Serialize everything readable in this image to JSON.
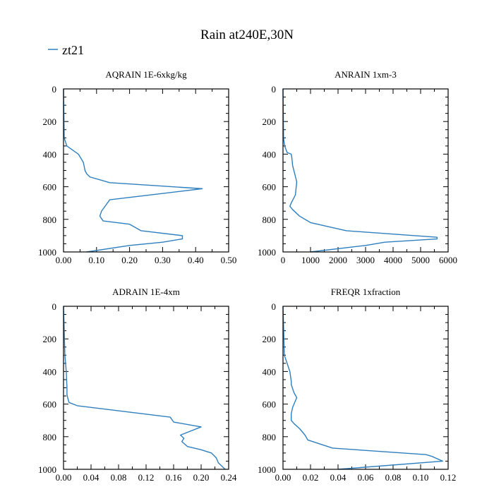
{
  "chart_title": "Rain at240E,30N",
  "legend": {
    "label": "zt21",
    "color": "#2f7fbf"
  },
  "chart_data": [
    {
      "type": "line",
      "title": "AQRAIN  1E-6xkg/kg",
      "xlim": [
        0,
        0.5
      ],
      "ylim": [
        1000,
        0
      ],
      "xticks": [
        0,
        0.1,
        0.2,
        0.3,
        0.4,
        0.5
      ],
      "xticklabels": [
        "0.00",
        "0.10",
        "0.20",
        "0.30",
        "0.40",
        "0.50"
      ],
      "yticks": [
        0,
        200,
        400,
        600,
        800,
        1000
      ],
      "yticklabels": [
        "0",
        "200",
        "400",
        "600",
        "800",
        "1000"
      ],
      "series": [
        {
          "name": "zt21",
          "x": [
            0,
            0.002,
            0.01,
            0.045,
            0.06,
            0.065,
            0.07,
            0.08,
            0.14,
            0.42,
            0.14,
            0.115,
            0.11,
            0.12,
            0.2,
            0.235,
            0.36,
            0.36,
            0.3,
            0.2,
            0.07
          ],
          "y": [
            0,
            300,
            350,
            400,
            450,
            500,
            520,
            540,
            575,
            612,
            680,
            750,
            780,
            810,
            830,
            870,
            900,
            920,
            940,
            960,
            1000
          ]
        }
      ]
    },
    {
      "type": "line",
      "title": "ANRAIN  1xm-3",
      "xlim": [
        0,
        6000
      ],
      "ylim": [
        1000,
        0
      ],
      "xticks": [
        0,
        1000,
        2000,
        3000,
        4000,
        5000,
        6000
      ],
      "xticklabels": [
        "0",
        "1000",
        "2000",
        "3000",
        "4000",
        "5000",
        "6000"
      ],
      "yticks": [
        0,
        200,
        400,
        600,
        800,
        1000
      ],
      "yticklabels": [
        "0",
        "200",
        "400",
        "600",
        "800",
        "1000"
      ],
      "series": [
        {
          "name": "zt21",
          "x": [
            0,
            20,
            60,
            150,
            300,
            320,
            350,
            500,
            450,
            300,
            250,
            350,
            600,
            900,
            1000,
            2300,
            5600,
            5600,
            3700,
            3000,
            1000
          ],
          "y": [
            0,
            300,
            350,
            390,
            400,
            420,
            470,
            570,
            650,
            700,
            720,
            740,
            780,
            810,
            820,
            870,
            910,
            920,
            940,
            960,
            1000
          ]
        }
      ]
    },
    {
      "type": "line",
      "title": "ADRAIN  1E-4xm",
      "xlim": [
        0,
        0.24
      ],
      "ylim": [
        1000,
        0
      ],
      "xticks": [
        0,
        0.04,
        0.08,
        0.12,
        0.16,
        0.2,
        0.24
      ],
      "xticklabels": [
        "0.00",
        "0.04",
        "0.08",
        "0.12",
        "0.16",
        "0.20",
        "0.24"
      ],
      "yticks": [
        0,
        200,
        400,
        600,
        800,
        1000
      ],
      "yticklabels": [
        "0",
        "200",
        "400",
        "600",
        "800",
        "1000"
      ],
      "series": [
        {
          "name": "zt21",
          "x": [
            0,
            0.002,
            0.004,
            0.005,
            0.005,
            0.006,
            0.008,
            0.02,
            0.155,
            0.16,
            0.2,
            0.17,
            0.175,
            0.172,
            0.18,
            0.2,
            0.215,
            0.222,
            0.225,
            0.235
          ],
          "y": [
            0,
            300,
            400,
            500,
            540,
            560,
            590,
            610,
            680,
            710,
            740,
            790,
            810,
            830,
            860,
            880,
            900,
            930,
            960,
            1000
          ]
        }
      ]
    },
    {
      "type": "line",
      "title": "FREQR  1xfraction",
      "xlim": [
        0,
        0.12
      ],
      "ylim": [
        1000,
        0
      ],
      "xticks": [
        0,
        0.02,
        0.04,
        0.06,
        0.08,
        0.1,
        0.12
      ],
      "xticklabels": [
        "0.00",
        "0.02",
        "0.04",
        "0.06",
        "0.08",
        "0.10",
        "0.12"
      ],
      "yticks": [
        0,
        200,
        400,
        600,
        800,
        1000
      ],
      "yticklabels": [
        "0",
        "200",
        "400",
        "600",
        "800",
        "1000"
      ],
      "series": [
        {
          "name": "zt21",
          "x": [
            0,
            0.001,
            0.003,
            0.005,
            0.006,
            0.006,
            0.008,
            0.01,
            0.007,
            0.006,
            0.006,
            0.008,
            0.012,
            0.016,
            0.018,
            0.036,
            0.104,
            0.108,
            0.116,
            0.04
          ],
          "y": [
            0,
            300,
            350,
            400,
            460,
            480,
            530,
            560,
            620,
            660,
            700,
            720,
            750,
            790,
            820,
            870,
            910,
            920,
            950,
            1000
          ]
        }
      ]
    }
  ]
}
